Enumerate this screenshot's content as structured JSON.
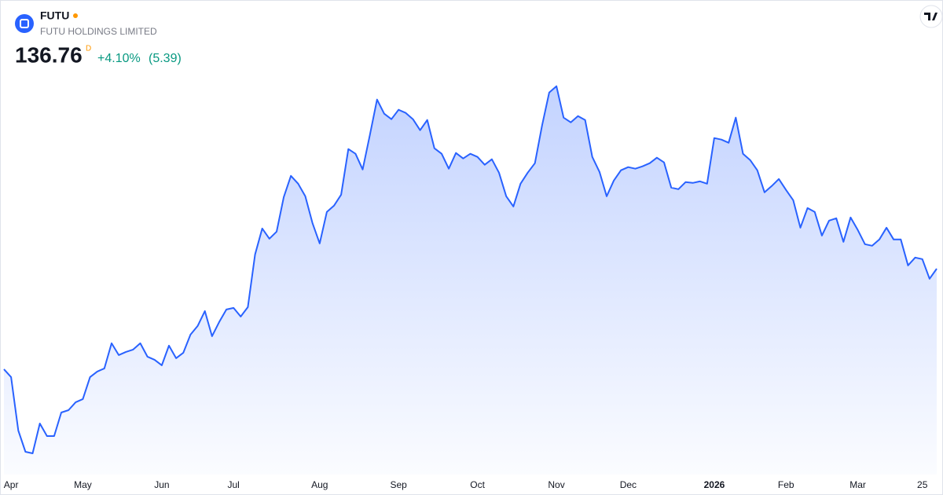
{
  "header": {
    "symbol": "FUTU",
    "name": "FUTU HOLDINGS LIMITED",
    "price": "136.76",
    "interval": "D",
    "change_percent": "+4.10%",
    "change_value": "(5.39)"
  },
  "chart_data": {
    "type": "area",
    "color": "#2962ff",
    "categories": [
      null,
      "Apr",
      null,
      null,
      null,
      null,
      null,
      null,
      null,
      null,
      null,
      "May",
      null,
      null,
      null,
      null,
      null,
      null,
      null,
      null,
      null,
      null,
      "Jun",
      null,
      null,
      null,
      null,
      null,
      null,
      null,
      null,
      null,
      "Jul",
      null,
      null,
      null,
      null,
      null,
      null,
      null,
      null,
      null,
      null,
      null,
      "Aug",
      null,
      null,
      null,
      null,
      null,
      null,
      null,
      null,
      null,
      null,
      "Sep",
      null,
      null,
      null,
      null,
      null,
      null,
      null,
      null,
      null,
      null,
      "Oct",
      null,
      null,
      null,
      null,
      null,
      null,
      null,
      null,
      null,
      null,
      "Nov",
      null,
      null,
      null,
      null,
      null,
      null,
      null,
      null,
      null,
      "Dec",
      null,
      null,
      null,
      null,
      null,
      null,
      null,
      null,
      null,
      null,
      null,
      "2026",
      null,
      null,
      null,
      null,
      null,
      null,
      null,
      null,
      null,
      "Feb",
      null,
      null,
      null,
      null,
      null,
      null,
      null,
      null,
      null,
      "Mar",
      null,
      null,
      null,
      null,
      null,
      null,
      null,
      null,
      "25",
      null,
      null
    ],
    "values": [
      98.4,
      95.4,
      75.0,
      66.9,
      66.3,
      77.7,
      72.9,
      72.9,
      81.9,
      82.8,
      85.8,
      87.0,
      95.4,
      97.5,
      98.7,
      108.3,
      103.8,
      105.0,
      105.9,
      108.3,
      103.2,
      102.0,
      99.9,
      107.4,
      102.6,
      104.7,
      111.6,
      114.9,
      120.6,
      111.0,
      116.4,
      121.2,
      121.8,
      118.5,
      122.1,
      142.2,
      152.1,
      148.2,
      150.9,
      164.1,
      172.2,
      169.2,
      164.4,
      154.2,
      146.4,
      158.4,
      160.8,
      165.0,
      182.4,
      180.6,
      174.6,
      187.8,
      201.3,
      195.9,
      193.8,
      197.4,
      196.2,
      193.8,
      189.6,
      193.5,
      182.7,
      180.6,
      174.9,
      180.9,
      178.8,
      180.6,
      179.4,
      176.4,
      178.5,
      173.4,
      164.4,
      160.5,
      169.2,
      173.4,
      177.0,
      191.4,
      204.0,
      206.4,
      194.4,
      192.6,
      195.0,
      193.5,
      179.4,
      173.7,
      164.4,
      170.4,
      174.3,
      175.5,
      174.9,
      175.8,
      177.0,
      179.1,
      177.3,
      167.7,
      167.1,
      169.8,
      169.5,
      170.1,
      169.2,
      186.6,
      186.0,
      184.8,
      194.4,
      180.6,
      178.2,
      174.3,
      165.9,
      168.3,
      171.0,
      166.8,
      162.9,
      152.4,
      159.9,
      158.4,
      149.4,
      155.1,
      156.0,
      147.0,
      156.3,
      151.5,
      146.1,
      145.5,
      147.9,
      152.4,
      147.9,
      147.9,
      138.0,
      141.0,
      140.4,
      132.9,
      136.76
    ],
    "ylim": [
      60,
      212
    ]
  }
}
